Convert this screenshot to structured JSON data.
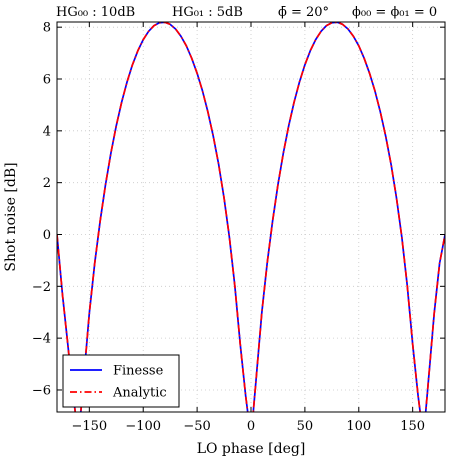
{
  "header": {
    "items": [
      "HG₀₀ : 10dB",
      "HG₀₁ : 5dB",
      "ϕ̄ = 20°",
      "ϕ₀₀ = ϕ₀₁ = 0"
    ]
  },
  "chart_data": {
    "type": "line",
    "title": "",
    "xlabel": "LO phase  [deg]",
    "ylabel": "Shot noise [dB]",
    "xlim": [
      -180,
      180
    ],
    "ylim": [
      -6.85,
      8.2
    ],
    "xticks": [
      -150,
      -100,
      -50,
      0,
      50,
      100,
      150
    ],
    "xtick_labels": [
      "−150",
      "−100",
      "−50",
      "0",
      "50",
      "100",
      "150"
    ],
    "yticks": [
      -6,
      -4,
      -2,
      0,
      2,
      4,
      6,
      8
    ],
    "ytick_labels": [
      "−6",
      "−4",
      "−2",
      "0",
      "2",
      "4",
      "6",
      "8"
    ],
    "grid": true,
    "legend_position": "lower-left",
    "series": [
      {
        "name": "Finesse",
        "color": "#0000ff",
        "style": "solid",
        "x": [
          -180,
          -175,
          -170,
          -165,
          -160,
          -155,
          -150,
          -145,
          -140,
          -135,
          -130,
          -125,
          -120,
          -115,
          -110,
          -105,
          -100,
          -95,
          -90,
          -85,
          -80,
          -75,
          -70,
          -65,
          -60,
          -55,
          -50,
          -45,
          -40,
          -35,
          -30,
          -25,
          -20,
          -15,
          -10,
          -5,
          0,
          5,
          10,
          15,
          20,
          25,
          30,
          35,
          40,
          45,
          50,
          55,
          60,
          65,
          70,
          75,
          80,
          85,
          90,
          95,
          100,
          105,
          110,
          115,
          120,
          125,
          130,
          135,
          140,
          145,
          150,
          155,
          160,
          165,
          170,
          175,
          180
        ],
        "y": [
          -0.01,
          -2.29,
          -4.23,
          -6.21,
          -7.86,
          -5.46,
          -3.03,
          -1.11,
          0.51,
          1.92,
          3.14,
          4.2,
          5.11,
          5.89,
          6.55,
          7.09,
          7.52,
          7.84,
          8.06,
          8.17,
          8.19,
          8.11,
          7.93,
          7.65,
          7.28,
          6.8,
          6.22,
          5.54,
          4.73,
          3.79,
          2.7,
          1.41,
          -0.12,
          -1.98,
          -4.23,
          -6.21,
          -7.86,
          -5.46,
          -3.03,
          -1.11,
          0.51,
          1.92,
          3.14,
          4.2,
          5.11,
          5.89,
          6.55,
          7.09,
          7.52,
          7.84,
          8.06,
          8.17,
          8.19,
          8.11,
          7.93,
          7.65,
          7.28,
          6.8,
          6.22,
          5.54,
          4.73,
          3.79,
          2.7,
          1.41,
          -0.12,
          -1.98,
          -4.23,
          -6.21,
          -7.86,
          -5.46,
          -3.03,
          -1.11,
          -0.01
        ]
      },
      {
        "name": "Analytic",
        "color": "#ff0000",
        "style": "dashdot",
        "x": [
          -180,
          -175,
          -170,
          -165,
          -160,
          -155,
          -150,
          -145,
          -140,
          -135,
          -130,
          -125,
          -120,
          -115,
          -110,
          -105,
          -100,
          -95,
          -90,
          -85,
          -80,
          -75,
          -70,
          -65,
          -60,
          -55,
          -50,
          -45,
          -40,
          -35,
          -30,
          -25,
          -20,
          -15,
          -10,
          -5,
          0,
          5,
          10,
          15,
          20,
          25,
          30,
          35,
          40,
          45,
          50,
          55,
          60,
          65,
          70,
          75,
          80,
          85,
          90,
          95,
          100,
          105,
          110,
          115,
          120,
          125,
          130,
          135,
          140,
          145,
          150,
          155,
          160,
          165,
          170,
          175,
          180
        ],
        "y": [
          -0.01,
          -2.29,
          -4.23,
          -6.21,
          -7.86,
          -5.46,
          -3.03,
          -1.11,
          0.51,
          1.92,
          3.14,
          4.2,
          5.11,
          5.89,
          6.55,
          7.09,
          7.52,
          7.84,
          8.06,
          8.17,
          8.19,
          8.11,
          7.93,
          7.65,
          7.28,
          6.8,
          6.22,
          5.54,
          4.73,
          3.79,
          2.7,
          1.41,
          -0.12,
          -1.98,
          -4.23,
          -6.21,
          -7.86,
          -5.46,
          -3.03,
          -1.11,
          0.51,
          1.92,
          3.14,
          4.2,
          5.11,
          5.89,
          6.55,
          7.09,
          7.52,
          7.84,
          8.06,
          8.17,
          8.19,
          8.11,
          7.93,
          7.65,
          7.28,
          6.8,
          6.22,
          5.54,
          4.73,
          3.79,
          2.7,
          1.41,
          -0.12,
          -1.98,
          -4.23,
          -6.21,
          -7.86,
          -5.46,
          -3.03,
          -1.11,
          -0.01
        ]
      }
    ]
  }
}
